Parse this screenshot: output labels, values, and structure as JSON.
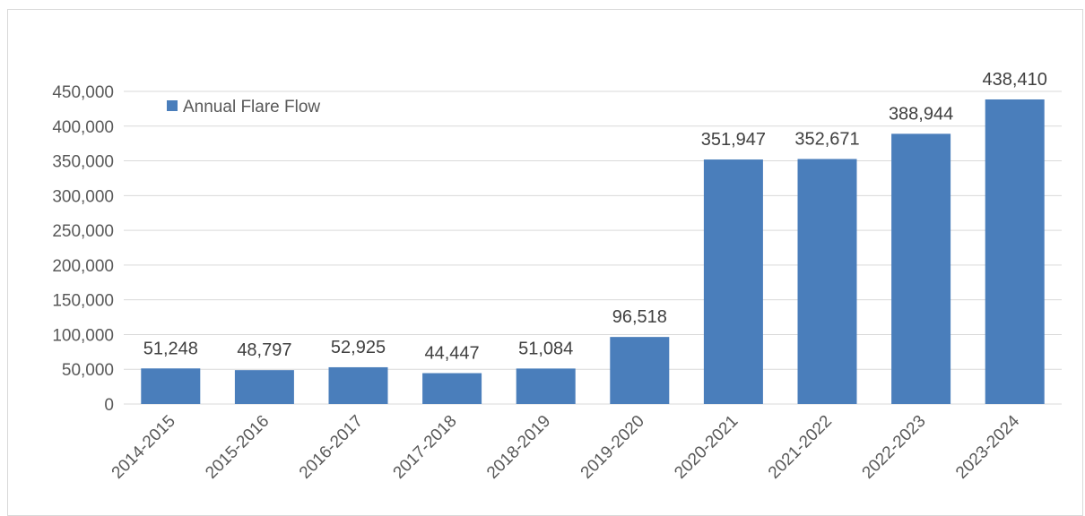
{
  "chart_data": {
    "type": "bar",
    "categories": [
      "2014-2015",
      "2015-2016",
      "2016-2017",
      "2017-2018",
      "2018-2019",
      "2019-2020",
      "2020-2021",
      "2021-2022",
      "2022-2023",
      "2023-2024"
    ],
    "series": [
      {
        "name": "Annual Flare Flow",
        "values": [
          51248,
          48797,
          52925,
          44447,
          51084,
          96518,
          351947,
          352671,
          388944,
          438410
        ],
        "value_labels": [
          "51,248",
          "48,797",
          "52,925",
          "44,447",
          "51,084",
          "96,518",
          "351,947",
          "352,671",
          "388,944",
          "438,410"
        ],
        "color": "#4a7ebb"
      }
    ],
    "title": "",
    "xlabel": "",
    "ylabel": "",
    "ylim": [
      0,
      450000
    ],
    "yticks": [
      0,
      50000,
      100000,
      150000,
      200000,
      250000,
      300000,
      350000,
      400000,
      450000
    ],
    "ytick_labels": [
      "0",
      "50,000",
      "100,000",
      "150,000",
      "200,000",
      "250,000",
      "300,000",
      "350,000",
      "400,000",
      "450,000"
    ],
    "grid": true,
    "grid_color": "#d9d9d9",
    "legend_position": "top-left",
    "x_tick_rotation": "-45deg"
  }
}
